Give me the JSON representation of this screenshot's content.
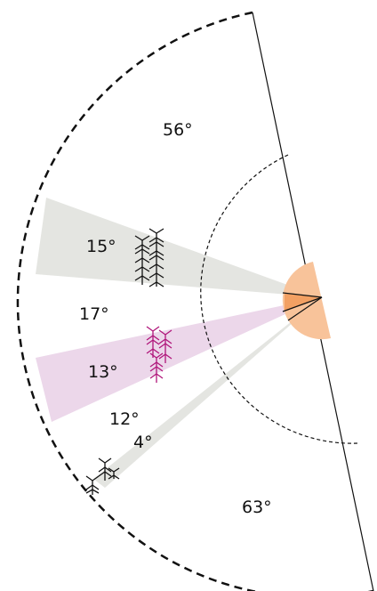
{
  "diagram": {
    "angle_labels": [
      "56°",
      "15°",
      "17°",
      "13°",
      "12°",
      "4°",
      "63°"
    ],
    "colors": {
      "line": "#111111",
      "wedge_gray": "#e4e5e1",
      "wedge_pink": "#ecd7ea",
      "orange_light": "#f8c39a",
      "orange_dark": "#f2a063",
      "glyph_black": "#111111",
      "glyph_magenta": "#b0157a"
    },
    "icons": [
      "tree-glyph-cluster-icon",
      "pink-glyph-cluster-icon",
      "single-glyph-cluster-icon"
    ]
  }
}
